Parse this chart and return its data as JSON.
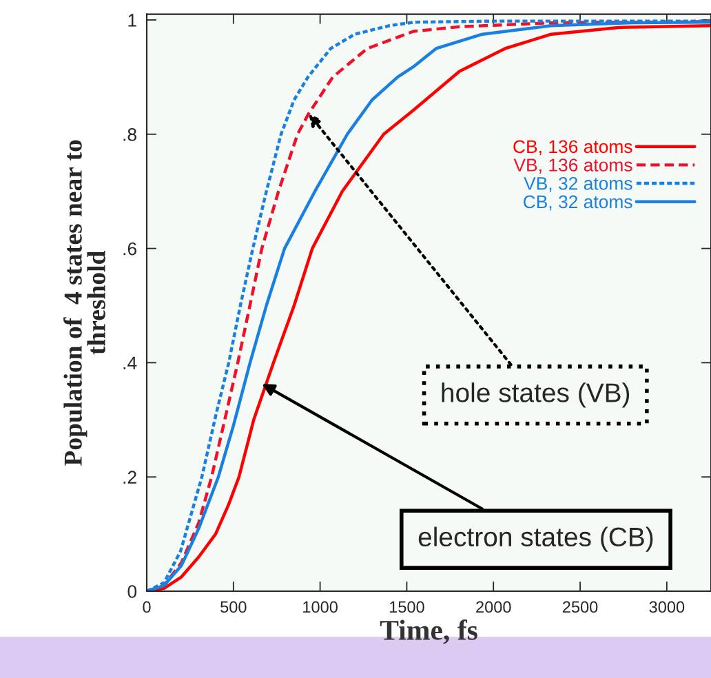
{
  "chart_data": {
    "type": "line",
    "xlabel": "Time, fs",
    "ylabel": "Population of  4 states near to\nthreshold",
    "xlim": [
      0,
      3255
    ],
    "ylim": [
      0,
      1.01
    ],
    "xticks": [
      0,
      500,
      1000,
      1500,
      2000,
      2500,
      3000
    ],
    "yticks": [
      0,
      {
        "value": 0.2,
        "label": ".2"
      },
      {
        "value": 0.4,
        "label": ".4"
      },
      {
        "value": 0.6,
        "label": ".6"
      },
      {
        "value": 0.8,
        "label": ".8"
      },
      1
    ],
    "grid": false,
    "legend": "right",
    "marker": "none",
    "series": [
      {
        "name": "CB, 136 atoms",
        "color": "#ff0000",
        "line_style": "solid",
        "x": [
          0,
          100,
          200,
          300,
          397,
          470,
          532,
          617,
          731,
          850,
          955,
          1128,
          1367,
          1538,
          1804,
          2067,
          2333,
          2730,
          3255
        ],
        "values": [
          0,
          0.005,
          0.025,
          0.06,
          0.1,
          0.15,
          0.2,
          0.3,
          0.4,
          0.5,
          0.6,
          0.7,
          0.8,
          0.842,
          0.91,
          0.95,
          0.975,
          0.987,
          0.99
        ]
      },
      {
        "name": "VB, 136 atoms",
        "color": "#f0102a",
        "line_style": "dashed",
        "x": [
          0,
          100,
          200,
          300,
          374,
          450,
          525,
          595,
          664,
          760,
          870,
          934,
          1073,
          1272,
          1538,
          1800,
          2333,
          3255
        ],
        "values": [
          0,
          0.01,
          0.05,
          0.12,
          0.2,
          0.3,
          0.4,
          0.5,
          0.6,
          0.7,
          0.8,
          0.836,
          0.9,
          0.95,
          0.98,
          0.988,
          0.995,
          0.997
        ]
      },
      {
        "name": "VB, 32 atoms",
        "color": "#1a80e0",
        "line_style": "dotted",
        "x": [
          0,
          100,
          195,
          318,
          400,
          473,
          540,
          612,
          690,
          775,
          850,
          930,
          1061,
          1200,
          1400,
          1538,
          2000,
          3255
        ],
        "values": [
          0,
          0.015,
          0.07,
          0.2,
          0.31,
          0.4,
          0.5,
          0.6,
          0.7,
          0.8,
          0.86,
          0.9,
          0.95,
          0.975,
          0.99,
          0.996,
          0.998,
          0.998
        ]
      },
      {
        "name": "CB, 32 atoms",
        "color": "#1a80e0",
        "line_style": "solid",
        "x": [
          0,
          100,
          200,
          300,
          413,
          500,
          596,
          690,
          795,
          970,
          1157,
          1300,
          1447,
          1538,
          1669,
          1936,
          2333,
          2800,
          3255
        ],
        "values": [
          0,
          0.01,
          0.045,
          0.11,
          0.2,
          0.29,
          0.4,
          0.5,
          0.6,
          0.7,
          0.8,
          0.86,
          0.9,
          0.918,
          0.95,
          0.975,
          0.99,
          0.995,
          0.996
        ]
      }
    ],
    "annotations": [
      {
        "text": "hole states (VB)",
        "x": 934,
        "y": 0.836
      },
      {
        "text": "electron states (CB)",
        "x": 664,
        "y": 0.363
      }
    ]
  }
}
